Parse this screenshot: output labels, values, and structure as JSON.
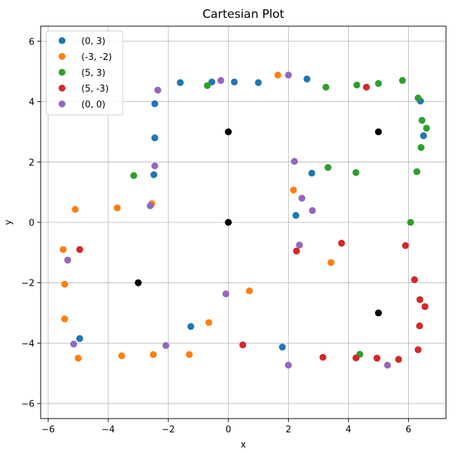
{
  "chart_data": {
    "type": "scatter",
    "title": "Cartesian Plot",
    "xlabel": "x",
    "ylabel": "y",
    "xlim": [
      -6.25,
      7.25
    ],
    "ylim": [
      -6.5,
      6.5
    ],
    "xticks": [
      -6,
      -4,
      -2,
      0,
      2,
      4,
      6
    ],
    "yticks": [
      -6,
      -4,
      -2,
      0,
      2,
      4,
      6
    ],
    "grid": true,
    "legend_position": "top-left",
    "series": [
      {
        "name": "(0, 3)",
        "color": "#1f77b4",
        "points": [
          [
            -1.6,
            4.63
          ],
          [
            -0.55,
            4.65
          ],
          [
            0.2,
            4.65
          ],
          [
            1.0,
            4.63
          ],
          [
            2.62,
            4.75
          ],
          [
            6.4,
            4.02
          ],
          [
            6.5,
            2.87
          ],
          [
            2.78,
            1.63
          ],
          [
            2.25,
            0.23
          ],
          [
            -2.45,
            3.93
          ],
          [
            -2.45,
            2.8
          ],
          [
            -2.48,
            1.58
          ],
          [
            -1.25,
            -3.45
          ],
          [
            1.8,
            -4.13
          ],
          [
            -4.95,
            -3.85
          ]
        ]
      },
      {
        "name": "(-3, -2)",
        "color": "#ff7f0e",
        "points": [
          [
            1.65,
            4.88
          ],
          [
            2.17,
            1.07
          ],
          [
            -2.55,
            0.62
          ],
          [
            -3.7,
            0.48
          ],
          [
            -5.1,
            0.43
          ],
          [
            -5.5,
            -0.9
          ],
          [
            -5.45,
            -2.05
          ],
          [
            -5.45,
            -3.2
          ],
          [
            -5.0,
            -4.5
          ],
          [
            -3.55,
            -4.42
          ],
          [
            -2.5,
            -4.38
          ],
          [
            -1.3,
            -4.38
          ],
          [
            -0.65,
            -3.32
          ],
          [
            0.7,
            -2.27
          ],
          [
            3.42,
            -1.33
          ]
        ]
      },
      {
        "name": "(5, 3)",
        "color": "#2ca02c",
        "points": [
          [
            -0.7,
            4.53
          ],
          [
            3.25,
            4.48
          ],
          [
            4.28,
            4.55
          ],
          [
            5.0,
            4.6
          ],
          [
            5.8,
            4.7
          ],
          [
            6.32,
            4.12
          ],
          [
            6.45,
            3.38
          ],
          [
            6.6,
            3.12
          ],
          [
            6.42,
            2.48
          ],
          [
            6.28,
            1.68
          ],
          [
            4.25,
            1.65
          ],
          [
            3.32,
            1.82
          ],
          [
            -3.15,
            1.55
          ],
          [
            6.07,
            0.0
          ],
          [
            4.38,
            -4.37
          ]
        ]
      },
      {
        "name": "(5, -3)",
        "color": "#d62728",
        "points": [
          [
            4.6,
            4.48
          ],
          [
            -4.95,
            -0.9
          ],
          [
            2.27,
            -0.95
          ],
          [
            3.77,
            -0.69
          ],
          [
            5.9,
            -0.77
          ],
          [
            6.2,
            -1.9
          ],
          [
            6.38,
            -2.56
          ],
          [
            6.55,
            -2.79
          ],
          [
            6.37,
            -3.43
          ],
          [
            6.32,
            -4.22
          ],
          [
            5.67,
            -4.54
          ],
          [
            4.95,
            -4.5
          ],
          [
            4.25,
            -4.49
          ],
          [
            3.15,
            -4.47
          ],
          [
            0.48,
            -4.06
          ]
        ]
      },
      {
        "name": "(0, 0)",
        "color": "#9467bd",
        "points": [
          [
            -0.25,
            4.7
          ],
          [
            2.0,
            4.88
          ],
          [
            -2.35,
            4.38
          ],
          [
            -2.45,
            1.87
          ],
          [
            -2.6,
            0.55
          ],
          [
            2.2,
            2.02
          ],
          [
            2.45,
            0.8
          ],
          [
            2.8,
            0.39
          ],
          [
            2.37,
            -0.75
          ],
          [
            -5.35,
            -1.25
          ],
          [
            -0.08,
            -2.37
          ],
          [
            -2.08,
            -4.08
          ],
          [
            -5.15,
            -4.03
          ],
          [
            2.0,
            -4.73
          ],
          [
            5.3,
            -4.73
          ]
        ]
      }
    ],
    "centers": {
      "color": "#000000",
      "points": [
        [
          0,
          3
        ],
        [
          -3,
          -2
        ],
        [
          5,
          3
        ],
        [
          5,
          -3
        ],
        [
          0,
          0
        ]
      ]
    }
  }
}
